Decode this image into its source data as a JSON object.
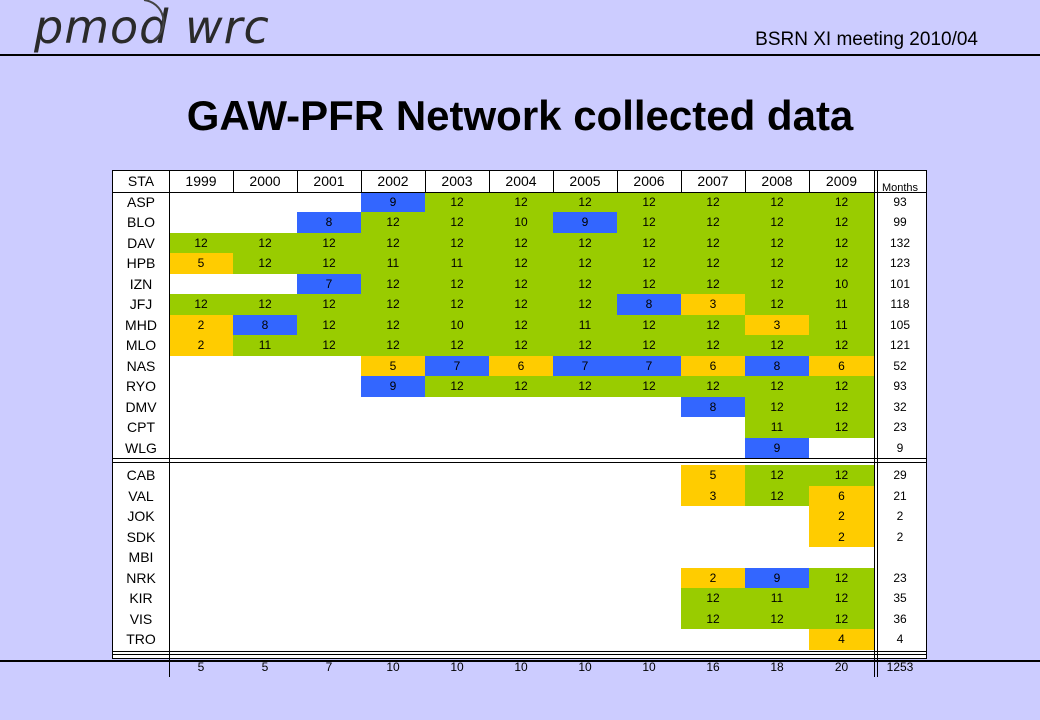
{
  "header": {
    "logo": "pmod wrc",
    "meeting": "BSRN XI meeting  2010/04"
  },
  "title": "GAW-PFR Network collected data",
  "table": {
    "sta_label": "STA",
    "months_label": "Months",
    "years": [
      "1999",
      "2000",
      "2001",
      "2002",
      "2003",
      "2004",
      "2005",
      "2006",
      "2007",
      "2008",
      "2009"
    ],
    "colors": {
      "green": "#99cc00",
      "yellow": "#ffcc00",
      "blue": "#3366ff"
    },
    "rows": [
      {
        "sta": "ASP",
        "cells": [
          null,
          null,
          null,
          [
            "9",
            "b"
          ],
          [
            "12",
            "g"
          ],
          [
            "12",
            "g"
          ],
          [
            "12",
            "g"
          ],
          [
            "12",
            "g"
          ],
          [
            "12",
            "g"
          ],
          [
            "12",
            "g"
          ],
          [
            "12",
            "g"
          ]
        ],
        "months": "93"
      },
      {
        "sta": "BLO",
        "cells": [
          null,
          null,
          [
            "8",
            "b"
          ],
          [
            "12",
            "g"
          ],
          [
            "12",
            "g"
          ],
          [
            "10",
            "g"
          ],
          [
            "9",
            "b"
          ],
          [
            "12",
            "g"
          ],
          [
            "12",
            "g"
          ],
          [
            "12",
            "g"
          ],
          [
            "12",
            "g"
          ]
        ],
        "months": "99"
      },
      {
        "sta": "DAV",
        "cells": [
          [
            "12",
            "g"
          ],
          [
            "12",
            "g"
          ],
          [
            "12",
            "g"
          ],
          [
            "12",
            "g"
          ],
          [
            "12",
            "g"
          ],
          [
            "12",
            "g"
          ],
          [
            "12",
            "g"
          ],
          [
            "12",
            "g"
          ],
          [
            "12",
            "g"
          ],
          [
            "12",
            "g"
          ],
          [
            "12",
            "g"
          ]
        ],
        "months": "132"
      },
      {
        "sta": "HPB",
        "cells": [
          [
            "5",
            "y"
          ],
          [
            "12",
            "g"
          ],
          [
            "12",
            "g"
          ],
          [
            "11",
            "g"
          ],
          [
            "11",
            "g"
          ],
          [
            "12",
            "g"
          ],
          [
            "12",
            "g"
          ],
          [
            "12",
            "g"
          ],
          [
            "12",
            "g"
          ],
          [
            "12",
            "g"
          ],
          [
            "12",
            "g"
          ]
        ],
        "months": "123"
      },
      {
        "sta": "IZN",
        "cells": [
          null,
          null,
          [
            "7",
            "b"
          ],
          [
            "12",
            "g"
          ],
          [
            "12",
            "g"
          ],
          [
            "12",
            "g"
          ],
          [
            "12",
            "g"
          ],
          [
            "12",
            "g"
          ],
          [
            "12",
            "g"
          ],
          [
            "12",
            "g"
          ],
          [
            "10",
            "g"
          ]
        ],
        "months": "101"
      },
      {
        "sta": "JFJ",
        "cells": [
          [
            "12",
            "g"
          ],
          [
            "12",
            "g"
          ],
          [
            "12",
            "g"
          ],
          [
            "12",
            "g"
          ],
          [
            "12",
            "g"
          ],
          [
            "12",
            "g"
          ],
          [
            "12",
            "g"
          ],
          [
            "8",
            "b"
          ],
          [
            "3",
            "y"
          ],
          [
            "12",
            "g"
          ],
          [
            "11",
            "g"
          ]
        ],
        "months": "118"
      },
      {
        "sta": "MHD",
        "cells": [
          [
            "2",
            "y"
          ],
          [
            "8",
            "b"
          ],
          [
            "12",
            "g"
          ],
          [
            "12",
            "g"
          ],
          [
            "10",
            "g"
          ],
          [
            "12",
            "g"
          ],
          [
            "11",
            "g"
          ],
          [
            "12",
            "g"
          ],
          [
            "12",
            "g"
          ],
          [
            "3",
            "y"
          ],
          [
            "11",
            "g"
          ]
        ],
        "months": "105"
      },
      {
        "sta": "MLO",
        "cells": [
          [
            "2",
            "y"
          ],
          [
            "11",
            "g"
          ],
          [
            "12",
            "g"
          ],
          [
            "12",
            "g"
          ],
          [
            "12",
            "g"
          ],
          [
            "12",
            "g"
          ],
          [
            "12",
            "g"
          ],
          [
            "12",
            "g"
          ],
          [
            "12",
            "g"
          ],
          [
            "12",
            "g"
          ],
          [
            "12",
            "g"
          ]
        ],
        "months": "121"
      },
      {
        "sta": "NAS",
        "cells": [
          null,
          null,
          null,
          [
            "5",
            "y"
          ],
          [
            "7",
            "b"
          ],
          [
            "6",
            "y"
          ],
          [
            "7",
            "b"
          ],
          [
            "7",
            "b"
          ],
          [
            "6",
            "y"
          ],
          [
            "8",
            "b"
          ],
          [
            "6",
            "y"
          ]
        ],
        "months": "52"
      },
      {
        "sta": "RYO",
        "cells": [
          null,
          null,
          null,
          [
            "9",
            "b"
          ],
          [
            "12",
            "g"
          ],
          [
            "12",
            "g"
          ],
          [
            "12",
            "g"
          ],
          [
            "12",
            "g"
          ],
          [
            "12",
            "g"
          ],
          [
            "12",
            "g"
          ],
          [
            "12",
            "g"
          ]
        ],
        "months": "93"
      },
      {
        "sta": "DMV",
        "cells": [
          null,
          null,
          null,
          null,
          null,
          null,
          null,
          null,
          [
            "8",
            "b"
          ],
          [
            "12",
            "g"
          ],
          [
            "12",
            "g"
          ]
        ],
        "months": "32"
      },
      {
        "sta": "CPT",
        "cells": [
          null,
          null,
          null,
          null,
          null,
          null,
          null,
          null,
          null,
          [
            "11",
            "g"
          ],
          [
            "12",
            "g"
          ]
        ],
        "months": "23"
      },
      {
        "sta": "WLG",
        "cells": [
          null,
          null,
          null,
          null,
          null,
          null,
          null,
          null,
          null,
          [
            "9",
            "b"
          ],
          null
        ],
        "months": "9"
      },
      {
        "sta": "CAB",
        "cells": [
          null,
          null,
          null,
          null,
          null,
          null,
          null,
          null,
          [
            "5",
            "y"
          ],
          [
            "12",
            "g"
          ],
          [
            "12",
            "g"
          ]
        ],
        "months": "29"
      },
      {
        "sta": "VAL",
        "cells": [
          null,
          null,
          null,
          null,
          null,
          null,
          null,
          null,
          [
            "3",
            "y"
          ],
          [
            "12",
            "g"
          ],
          [
            "6",
            "y"
          ]
        ],
        "months": "21"
      },
      {
        "sta": "JOK",
        "cells": [
          null,
          null,
          null,
          null,
          null,
          null,
          null,
          null,
          null,
          null,
          [
            "2",
            "y"
          ]
        ],
        "months": "2"
      },
      {
        "sta": "SDK",
        "cells": [
          null,
          null,
          null,
          null,
          null,
          null,
          null,
          null,
          null,
          null,
          [
            "2",
            "y"
          ]
        ],
        "months": "2"
      },
      {
        "sta": "MBI",
        "cells": [
          null,
          null,
          null,
          null,
          null,
          null,
          null,
          null,
          null,
          null,
          null
        ],
        "months": ""
      },
      {
        "sta": "NRK",
        "cells": [
          null,
          null,
          null,
          null,
          null,
          null,
          null,
          null,
          [
            "2",
            "y"
          ],
          [
            "9",
            "b"
          ],
          [
            "12",
            "g"
          ]
        ],
        "months": "23"
      },
      {
        "sta": "KIR",
        "cells": [
          null,
          null,
          null,
          null,
          null,
          null,
          null,
          null,
          [
            "12",
            "g"
          ],
          [
            "11",
            "g"
          ],
          [
            "12",
            "g"
          ]
        ],
        "months": "35"
      },
      {
        "sta": "VIS",
        "cells": [
          null,
          null,
          null,
          null,
          null,
          null,
          null,
          null,
          [
            "12",
            "g"
          ],
          [
            "12",
            "g"
          ],
          [
            "12",
            "g"
          ]
        ],
        "months": "36"
      },
      {
        "sta": "TRO",
        "cells": [
          null,
          null,
          null,
          null,
          null,
          null,
          null,
          null,
          null,
          null,
          [
            "4",
            "y"
          ]
        ],
        "months": "4"
      }
    ],
    "totals": [
      "5",
      "5",
      "7",
      "10",
      "10",
      "10",
      "10",
      "10",
      "16",
      "18",
      "20"
    ],
    "grand_total": "1253"
  }
}
